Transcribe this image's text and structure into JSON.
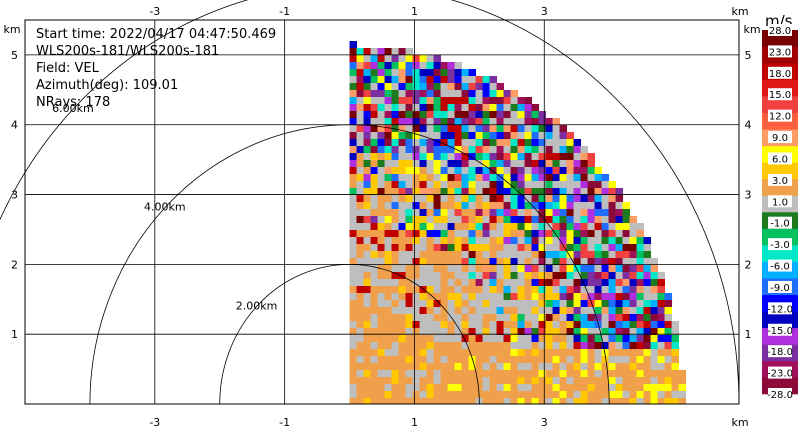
{
  "chart_data": {
    "type": "heatmap",
    "field": "VEL",
    "info_lines": [
      "Start time: 2022/04/17 04:47:50.469",
      "WLS200s-181/WLS200s-181",
      "Field: VEL",
      "Azimuth(deg): 109.01",
      "NRays: 178"
    ],
    "x_unit_label": "km",
    "y_unit_label": "km",
    "xlim": [
      -5.0,
      6.0
    ],
    "ylim": [
      0.0,
      5.5
    ],
    "x_ticks": [
      -3,
      -1,
      1,
      3
    ],
    "y_ticks": [
      1,
      2,
      3,
      4,
      5
    ],
    "range_rings": [
      {
        "radius_km": 2.0,
        "label": "2.00km"
      },
      {
        "radius_km": 4.0,
        "label": "4.00km"
      },
      {
        "radius_km": 6.0,
        "label": "6.00km"
      }
    ],
    "sector": {
      "origin_km": [
        0.0,
        0.0
      ],
      "azimuth_start_deg": 0,
      "azimuth_end_deg": 90,
      "max_range_km": 5.15
    },
    "colorbar": {
      "unit": "m/s",
      "tick_labels": [
        "-28.0",
        "-23.0",
        "-18.0",
        "-15.0",
        "-12.0",
        "-9.0",
        "-6.0",
        "-3.0",
        "-1.0",
        "1.0",
        "3.0",
        "6.0",
        "9.0",
        "12.0",
        "15.0",
        "18.0",
        "23.0",
        "28.0"
      ],
      "colors": [
        "#8b0a3a",
        "#a0105a",
        "#7b2fa0",
        "#b030e0",
        "#0000c0",
        "#0000ff",
        "#1e6fff",
        "#00b0ff",
        "#00e8c8",
        "#00c060",
        "#1e7a1e",
        "#bebebe",
        "#f0a04a",
        "#ffc800",
        "#ffff00",
        "#ff9c66",
        "#ff6040",
        "#f04040",
        "#e01818",
        "#c00000",
        "#a00000",
        "#780000"
      ]
    },
    "grid": true
  }
}
